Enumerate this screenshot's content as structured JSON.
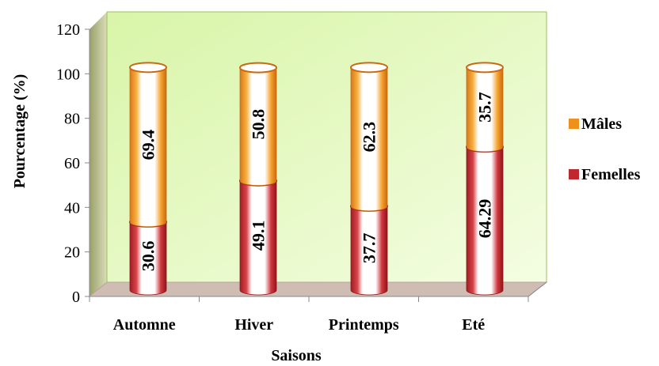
{
  "chart_data": {
    "type": "bar",
    "stacked": true,
    "percent_stacked": true,
    "categories": [
      "Automne",
      "Hiver",
      "Printemps",
      "Eté"
    ],
    "series": [
      {
        "name": "Femelles",
        "values": [
          30.6,
          49.1,
          37.7,
          64.29
        ],
        "labels": [
          "30.6",
          "49.1",
          "37.7",
          "64.29"
        ],
        "color": "#c0282f"
      },
      {
        "name": "Mâles",
        "values": [
          69.4,
          50.8,
          62.3,
          35.7
        ],
        "labels": [
          "69.4",
          "50.8",
          "62.3",
          "35.7"
        ],
        "color": "#f0901c"
      }
    ],
    "title": "",
    "xlabel": "Saisons",
    "ylabel": "Pourcentage (%)",
    "ylim": [
      0,
      120
    ],
    "yticks": [
      "0",
      "20",
      "40",
      "60",
      "80",
      "100",
      "120"
    ],
    "grid": false,
    "legend_position": "right",
    "plot_background": "#ecfbc8",
    "floor_color": "#cbbab0",
    "side_wall_color": "#c8c8a8"
  }
}
